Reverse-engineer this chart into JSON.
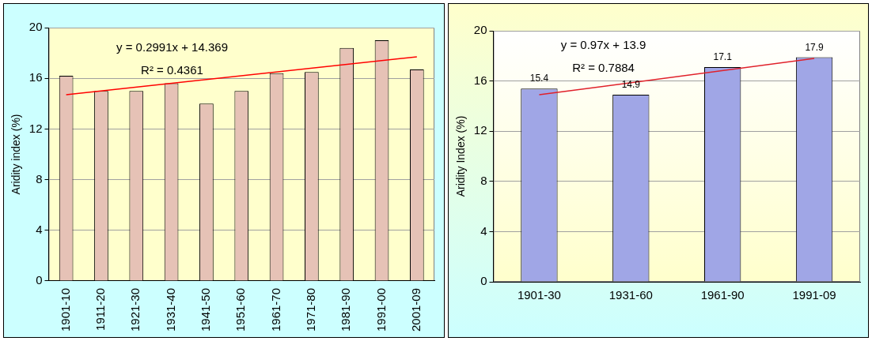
{
  "chart_data": [
    {
      "type": "bar",
      "ylabel": "Aridity index (%)",
      "categories": [
        "1901-10",
        "1911-20",
        "1921-30",
        "1931-40",
        "1941-50",
        "1951-60",
        "1961-70",
        "1971-80",
        "1981-90",
        "1991-00",
        "2001-09"
      ],
      "series": [
        {
          "color": "#e6c2b6",
          "values": [
            16.2,
            15.0,
            15.0,
            15.6,
            14.0,
            15.0,
            16.4,
            16.5,
            18.4,
            19.0,
            16.7
          ]
        },
        {
          "type": "line",
          "color": "#ff0000",
          "values": [
            14.7,
            null,
            null,
            null,
            null,
            null,
            null,
            null,
            null,
            null,
            17.7
          ]
        }
      ],
      "ylim": [
        0,
        20
      ],
      "yticks": [
        0,
        4,
        8,
        12,
        16,
        20
      ],
      "grid": "y",
      "annotations": [
        "y = 0.2991x + 14.369",
        "R² = 0.4361"
      ]
    },
    {
      "type": "bar",
      "ylabel": "Aridity Index (%)",
      "categories": [
        "1901-30",
        "1931-60",
        "1961-90",
        "1991-09"
      ],
      "series": [
        {
          "color": "#a0a6e6",
          "values": [
            15.4,
            14.9,
            17.1,
            17.9
          ],
          "value_labels": [
            "15.4",
            "14.9",
            "17.1",
            "17.9"
          ]
        },
        {
          "type": "line",
          "color": "#e0202a",
          "values": [
            14.9,
            null,
            null,
            17.8
          ]
        }
      ],
      "ylim": [
        0,
        20
      ],
      "yticks": [
        0,
        4,
        8,
        12,
        16,
        20
      ],
      "grid": "y",
      "annotations": [
        "y = 0.97x + 13.9",
        "R² = 0.7884"
      ]
    }
  ]
}
